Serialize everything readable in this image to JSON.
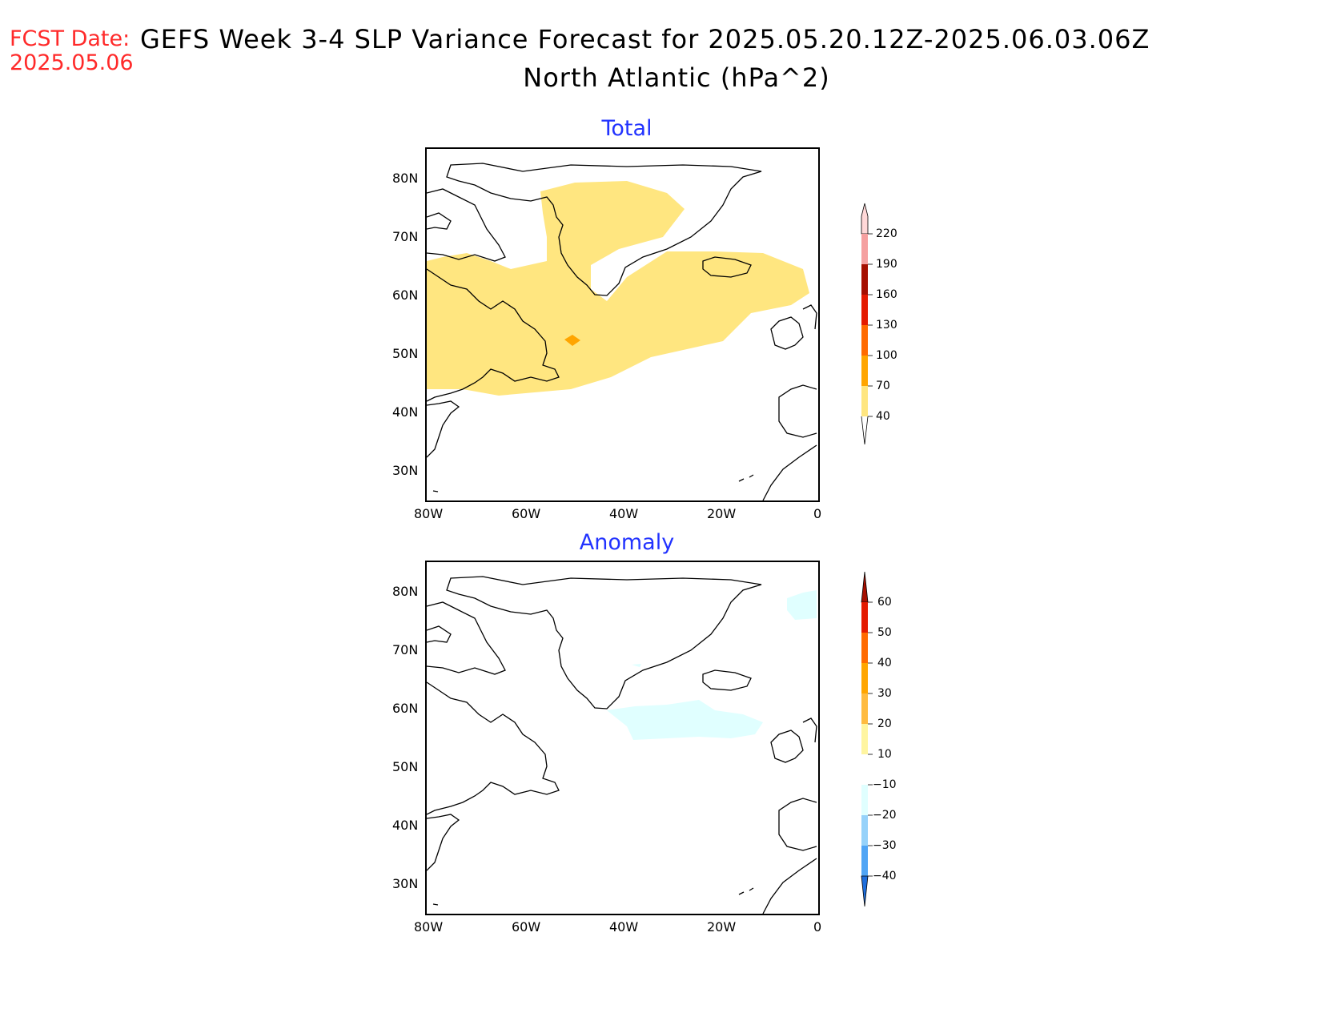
{
  "header": {
    "fcst_label": "FCST Date:",
    "fcst_date": "2025.05.06",
    "title_line1": "GEFS Week 3-4 SLP Variance Forecast for 2025.05.20.12Z-2025.06.03.06Z",
    "title_line2": "North Atlantic (hPa^2)"
  },
  "colors": {
    "title_blue": "#2233ff",
    "fcst_red": "#ff2a2a"
  },
  "panels": [
    {
      "title": "Total",
      "lat_labels": [
        "80N",
        "70N",
        "60N",
        "50N",
        "40N",
        "30N"
      ],
      "lon_labels": [
        "80W",
        "60W",
        "40W",
        "20W",
        "0"
      ],
      "colorbar": {
        "levels": [
          "40",
          "70",
          "100",
          "130",
          "160",
          "190",
          "220"
        ],
        "colors": [
          "#ffe680",
          "#ffa500",
          "#ff6a00",
          "#e41a00",
          "#a50f00",
          "#f5a0a0",
          "#ffd8d8"
        ]
      }
    },
    {
      "title": "Anomaly",
      "lat_labels": [
        "80N",
        "70N",
        "60N",
        "50N",
        "40N",
        "30N"
      ],
      "lon_labels": [
        "80W",
        "60W",
        "40W",
        "20W",
        "0"
      ],
      "colorbar": {
        "levels": [
          "60",
          "50",
          "40",
          "30",
          "20",
          "10",
          "−10",
          "−20",
          "−30",
          "−40"
        ],
        "colors": [
          "#a50f00",
          "#e41a00",
          "#ff6a00",
          "#ffa500",
          "#ffbb40",
          "#fff5a0",
          "#ffffff",
          "#e0ffff",
          "#96d2fa",
          "#50a5f5",
          "#1e6edc"
        ]
      }
    }
  ]
}
